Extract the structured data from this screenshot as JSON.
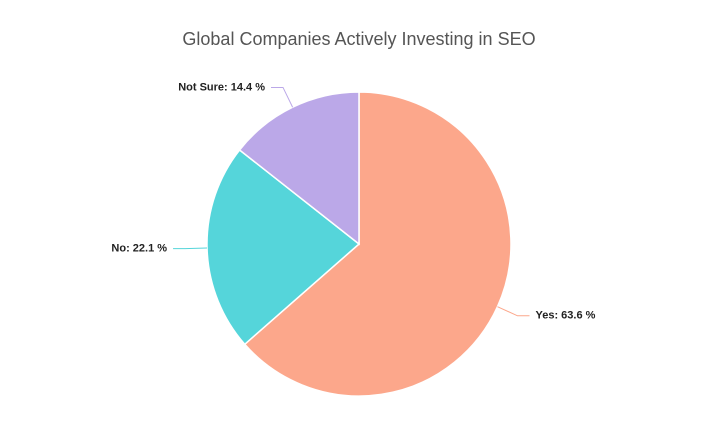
{
  "chart_data": {
    "type": "pie",
    "title": "Global Companies Actively Investing in SEO",
    "values": [
      63.6,
      22.1,
      14.4
    ],
    "value_labels": [
      "Yes: 63.6 %",
      "No: 22.1 %",
      "Not Sure: 14.4 %"
    ],
    "colors": [
      "#fca78b",
      "#55d5da",
      "#bba8e8"
    ]
  }
}
